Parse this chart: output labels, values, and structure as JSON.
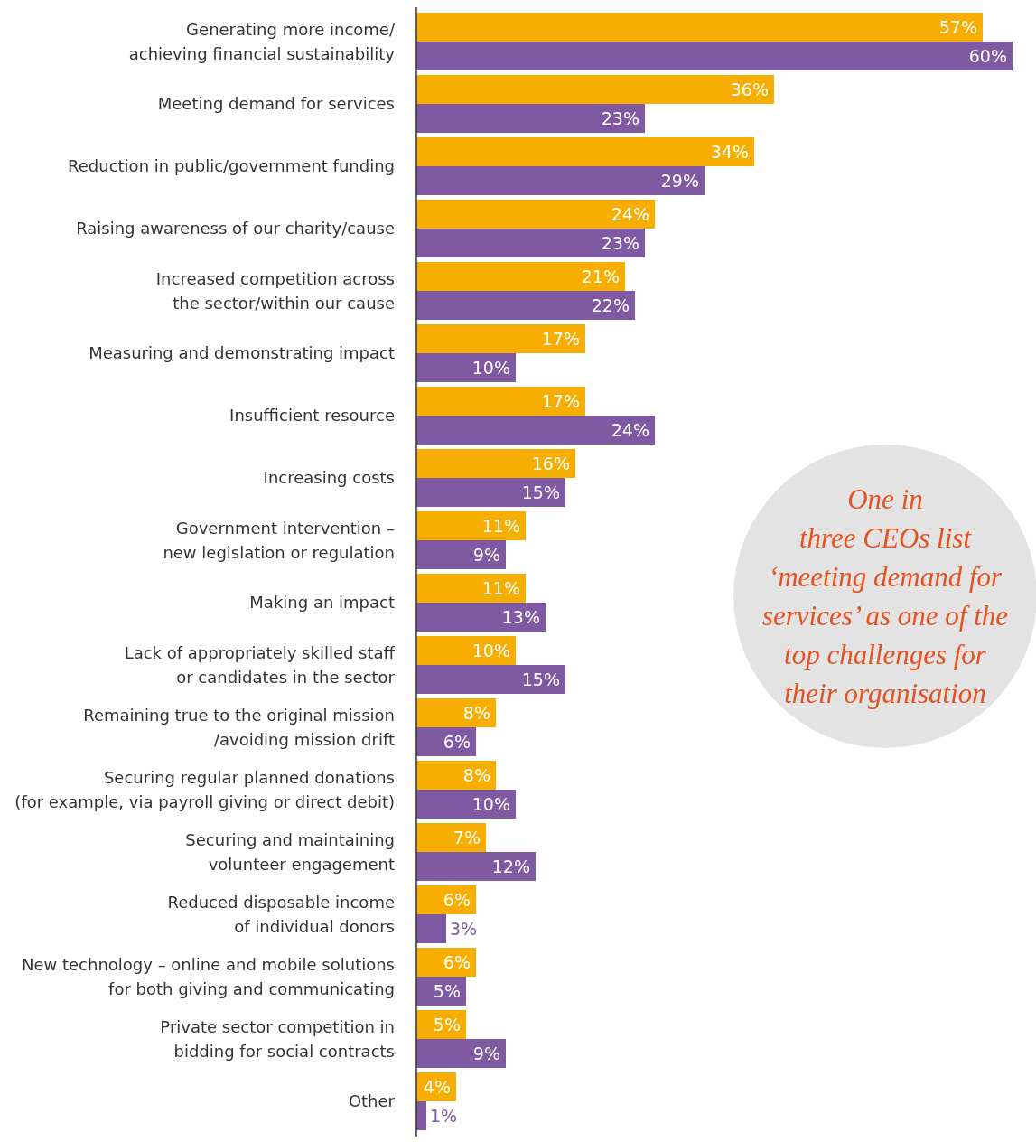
{
  "chart_data": {
    "type": "bar",
    "orientation": "horizontal",
    "tick_labels": "y",
    "categories": [
      "Generating more income/\nachieving financial sustainability",
      "Meeting demand for services",
      "Reduction in public/government funding",
      "Raising awareness of our charity/cause",
      "Increased competition across\nthe sector/within our cause",
      "Measuring and demonstrating impact",
      "Insufficient resource",
      "Increasing costs",
      "Government intervention –\nnew legislation or regulation",
      "Making an impact",
      "Lack of appropriately skilled staff\nor candidates in the sector",
      "Remaining true to the original mission\n/avoiding mission drift",
      "Securing regular planned donations\n(for example, via payroll giving or direct debit)",
      "Securing and maintaining\nvolunteer engagement",
      "Reduced disposable income\nof individual donors",
      "New technology – online and mobile solutions\nfor both giving and communicating",
      "Private sector competition in\nbidding for social contracts",
      "Other"
    ],
    "series": [
      {
        "color": "#f7ae00",
        "values": [
          57,
          36,
          34,
          24,
          21,
          17,
          17,
          16,
          11,
          11,
          10,
          8,
          8,
          7,
          6,
          6,
          5,
          4
        ],
        "value_labels": [
          "57%",
          "36%",
          "34%",
          "24%",
          "21%",
          "17%",
          "17%",
          "16%",
          "11%",
          "11%",
          "10%",
          "8%",
          "8%",
          "7%",
          "6%",
          "6%",
          "5%",
          "4%"
        ]
      },
      {
        "color": "#7f5aa2",
        "values": [
          60,
          23,
          29,
          23,
          22,
          10,
          24,
          15,
          9,
          13,
          15,
          6,
          10,
          12,
          3,
          5,
          9,
          1
        ],
        "value_labels": [
          "60%",
          "23%",
          "29%",
          "23%",
          "22%",
          "10%",
          "24%",
          "15%",
          "9%",
          "13%",
          "15%",
          "6%",
          "10%",
          "12%",
          "3%",
          "5%",
          "9%",
          "1%"
        ]
      }
    ],
    "annotations": [
      "One in\nthree CEOs list\n‘meeting demand for\nservices’ as one of the\ntop challenges for\ntheir organisation"
    ]
  }
}
